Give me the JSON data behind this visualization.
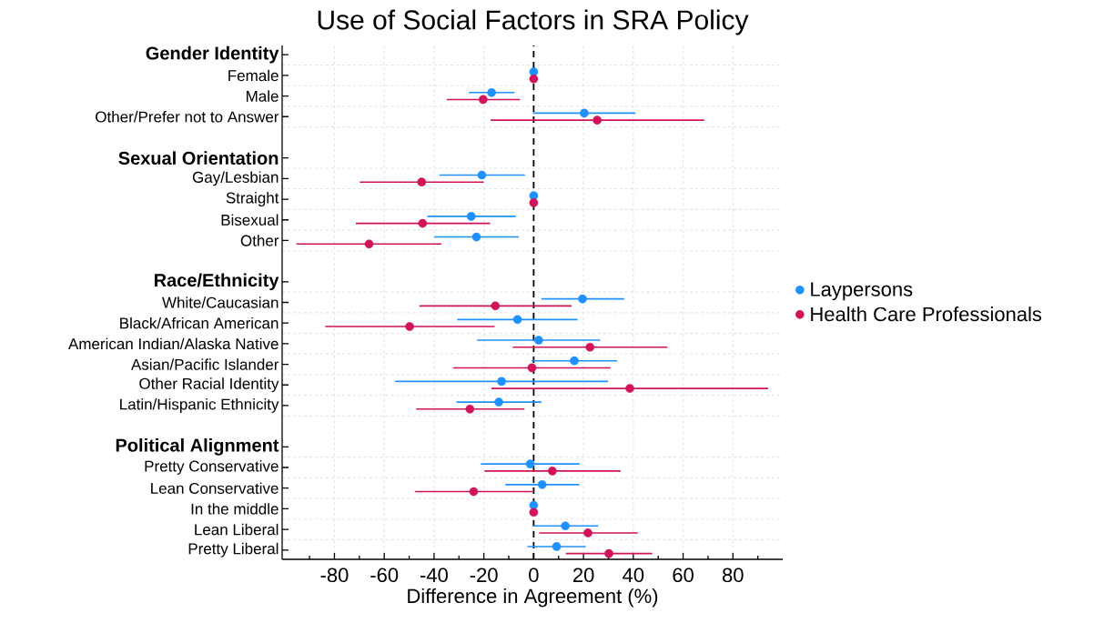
{
  "chart_data": {
    "type": "scatter",
    "orientation": "horizontal",
    "title": "Use of Social Factors in SRA Policy",
    "xlabel": "Difference in Agreement (%)",
    "categories": [
      "Gender Identity",
      "Female",
      "Male",
      "Other/Prefer not to Answer",
      null,
      "Sexual Orientation",
      "Gay/Lesbian",
      "Straight",
      "Bisexual",
      "Other",
      null,
      "Race/Ethnicity",
      "White/Caucasian",
      "Black/African American",
      "American Indian/Alaska Native",
      "Asian/Pacific Islander",
      "Other Racial Identity",
      "Latin/Hispanic Ethnicity",
      null,
      "Political Alignment",
      "Pretty Conservative",
      "Lean Conservative",
      "In the middle",
      "Lean Liberal",
      "Pretty Liberal"
    ],
    "series": [
      {
        "name": "Laypersons",
        "color": "#1e90ff",
        "values": [
          null,
          0,
          -16.9,
          20.3,
          null,
          null,
          -20.8,
          0,
          -25.1,
          -23.0,
          null,
          null,
          19.6,
          -6.5,
          2.0,
          16.3,
          -12.9,
          -14.0,
          null,
          null,
          -1.4,
          3.4,
          0,
          12.7,
          9.2
        ],
        "errors": [
          null,
          null,
          [
            -26.0,
            -7.7
          ],
          [
            -0.3,
            40.9
          ],
          null,
          null,
          [
            -37.9,
            -3.5
          ],
          null,
          [
            -42.7,
            -7.2
          ],
          [
            -39.9,
            -6.0
          ],
          null,
          null,
          [
            3.1,
            36.3
          ],
          [
            -30.7,
            17.6
          ],
          [
            -22.7,
            26.7
          ],
          [
            -0.9,
            33.5
          ],
          [
            -55.6,
            29.8
          ],
          [
            -31.0,
            3.1
          ],
          null,
          null,
          [
            -21.2,
            18.4
          ],
          [
            -11.4,
            18.3
          ],
          null,
          [
            -0.5,
            25.9
          ],
          [
            -2.5,
            20.9
          ]
        ]
      },
      {
        "name": "Health Care Professionals",
        "color": "#d0135a",
        "values": [
          null,
          0,
          -20.3,
          25.5,
          null,
          null,
          -45.0,
          0,
          -44.6,
          -66.1,
          null,
          null,
          -15.4,
          -49.8,
          22.6,
          -0.7,
          38.6,
          -25.6,
          null,
          null,
          7.5,
          -24.1,
          0,
          21.8,
          30.2
        ],
        "errors": [
          null,
          null,
          [
            -34.9,
            -5.5
          ],
          [
            -17.3,
            68.5
          ],
          null,
          null,
          [
            -69.8,
            -20.1
          ],
          null,
          [
            -71.4,
            -17.5
          ],
          [
            -95.3,
            -37.0
          ],
          null,
          null,
          [
            -45.9,
            15.2
          ],
          [
            -83.7,
            -15.7
          ],
          [
            -8.4,
            53.7
          ],
          [
            -32.3,
            30.8
          ],
          [
            -17.0,
            94.1
          ],
          [
            -47.2,
            -3.7
          ],
          null,
          null,
          [
            -19.7,
            34.9
          ],
          [
            -47.7,
            -0.5
          ],
          null,
          [
            2.2,
            41.8
          ],
          [
            12.9,
            47.6
          ]
        ]
      }
    ],
    "xlim": [
      -101,
      100
    ],
    "xticks": [
      -80,
      -60,
      -40,
      -20,
      0,
      20,
      40,
      60,
      80
    ],
    "ref_lines": [
      {
        "axis": "x",
        "value": 0,
        "color": "#000000",
        "line_style": "dashed"
      }
    ],
    "grid": true,
    "legend": "right",
    "marker": "circle"
  }
}
